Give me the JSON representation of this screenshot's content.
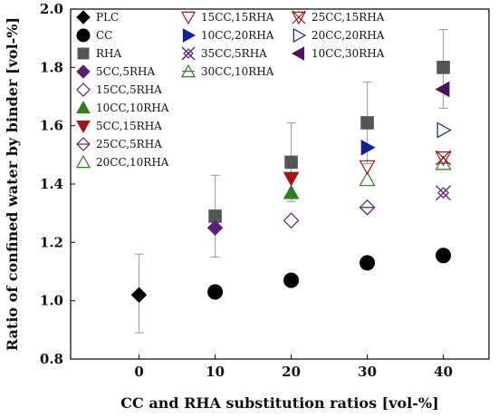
{
  "chart_data": {
    "type": "scatter",
    "xlabel": "CC and RHA substitution ratios [vol-%]",
    "ylabel": "Ratio of confined water by binder [vol-%]",
    "xlim": [
      -9,
      46
    ],
    "ylim": [
      0.8,
      2.0
    ],
    "xticks": [
      0,
      10,
      20,
      30,
      40
    ],
    "yticks": [
      0.8,
      1.0,
      1.2,
      1.4,
      1.6,
      1.8,
      2.0
    ],
    "grid": false,
    "legend_position": "top-left, three columns",
    "series": [
      {
        "name": "PLC",
        "marker": "diamond",
        "fill": "filled",
        "color": "#000000",
        "points": [
          [
            0,
            1.02
          ]
        ],
        "error": [
          [
            0,
            0.89,
            1.16
          ]
        ]
      },
      {
        "name": "CC",
        "marker": "circle",
        "fill": "filled",
        "color": "#000000",
        "points": [
          [
            10,
            1.03
          ],
          [
            20,
            1.07
          ],
          [
            30,
            1.13
          ],
          [
            40,
            1.155
          ]
        ]
      },
      {
        "name": "RHA",
        "marker": "square",
        "fill": "filled",
        "color": "#555555",
        "points": [
          [
            10,
            1.29
          ],
          [
            20,
            1.475
          ],
          [
            30,
            1.61
          ],
          [
            40,
            1.8
          ]
        ],
        "error": [
          [
            10,
            1.15,
            1.43
          ],
          [
            20,
            1.34,
            1.61
          ],
          [
            30,
            1.47,
            1.75
          ],
          [
            40,
            1.66,
            1.93
          ]
        ]
      },
      {
        "name": "5CC,5RHA",
        "marker": "diamond",
        "fill": "filled",
        "color": "#5b1f7a",
        "points": [
          [
            10,
            1.25
          ]
        ]
      },
      {
        "name": "15CC,5RHA",
        "marker": "diamond",
        "fill": "open",
        "color": "#5b1f7a",
        "points": [
          [
            20,
            1.275
          ]
        ]
      },
      {
        "name": "10CC,10RHA",
        "marker": "triangle-up",
        "fill": "filled",
        "color": "#2e7d1f",
        "points": [
          [
            20,
            1.37
          ]
        ]
      },
      {
        "name": "5CC,15RHA",
        "marker": "triangle-down",
        "fill": "filled",
        "color": "#a01515",
        "points": [
          [
            20,
            1.42
          ]
        ]
      },
      {
        "name": "25CC,5RHA",
        "marker": "diamond-cross",
        "fill": "open",
        "color": "#5b1f7a",
        "points": [
          [
            30,
            1.32
          ]
        ]
      },
      {
        "name": "20CC,10RHA",
        "marker": "triangle-up",
        "fill": "open",
        "color": "#2e7d1f",
        "points": [
          [
            30,
            1.415
          ]
        ]
      },
      {
        "name": "15CC,15RHA",
        "marker": "triangle-down",
        "fill": "open",
        "color": "#a01515",
        "points": [
          [
            30,
            1.46
          ]
        ]
      },
      {
        "name": "10CC,20RHA",
        "marker": "triangle-right",
        "fill": "filled",
        "color": "#14209a",
        "points": [
          [
            30,
            1.525
          ]
        ]
      },
      {
        "name": "35CC,5RHA",
        "marker": "x-square",
        "fill": "open",
        "color": "#5b1f7a",
        "points": [
          [
            40,
            1.37
          ]
        ]
      },
      {
        "name": "30CC,10RHA",
        "marker": "triangle-up-bar",
        "fill": "open",
        "color": "#2e7d1f",
        "points": [
          [
            40,
            1.47
          ]
        ]
      },
      {
        "name": "25CC,15RHA",
        "marker": "triangle-down-x",
        "fill": "open",
        "color": "#a01515",
        "points": [
          [
            40,
            1.49
          ]
        ]
      },
      {
        "name": "20CC,20RHA",
        "marker": "triangle-right",
        "fill": "open",
        "color": "#14209a",
        "points": [
          [
            40,
            1.585
          ]
        ]
      },
      {
        "name": "10CC,30RHA",
        "marker": "triangle-left",
        "fill": "filled",
        "color": "#4a1460",
        "points": [
          [
            40,
            1.725
          ]
        ]
      }
    ],
    "legend_order": [
      [
        "PLC",
        "CC",
        "RHA",
        "5CC,5RHA",
        "15CC,5RHA",
        "10CC,10RHA",
        "5CC,15RHA",
        "25CC,5RHA",
        "20CC,10RHA"
      ],
      [
        "15CC,15RHA",
        "10CC,20RHA",
        "35CC,5RHA",
        "30CC,10RHA"
      ],
      [
        "25CC,15RHA",
        "20CC,20RHA",
        "10CC,30RHA"
      ]
    ]
  }
}
